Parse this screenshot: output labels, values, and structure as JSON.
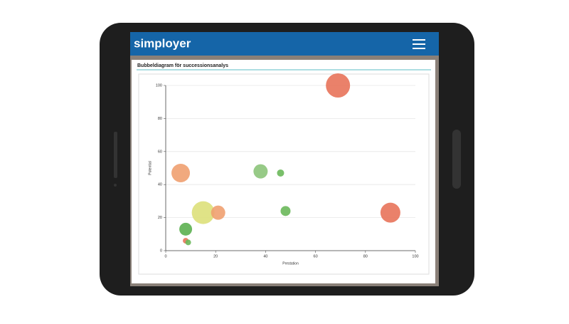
{
  "header": {
    "logo": "simployer"
  },
  "chart_data": {
    "type": "bubble",
    "title": "Bubbeldiagram för successionsanalys",
    "x_label": "Prestation",
    "y_label": "Potential",
    "xlim": [
      0,
      100
    ],
    "xticks": [
      0,
      20,
      40,
      60,
      80,
      100
    ],
    "ylim": [
      0,
      100
    ],
    "yticks": [
      0,
      20,
      40,
      60,
      80,
      100
    ],
    "grid": true,
    "series": [
      {
        "x": [
          69,
          6,
          38,
          46,
          15,
          21,
          48,
          90,
          8,
          8,
          9
        ],
        "values": [
          100,
          47,
          48,
          47,
          23,
          23,
          24,
          23,
          13,
          6,
          5
        ],
        "sizes": [
          17,
          13,
          10,
          5,
          16,
          10,
          7,
          14,
          9,
          4,
          4
        ],
        "colors": [
          "#e8735a",
          "#f0a070",
          "#8cc47a",
          "#6ab85a",
          "#dde07a",
          "#f0a070",
          "#6ab85a",
          "#e8735a",
          "#5cb050",
          "#e8735a",
          "#6ab85a"
        ]
      }
    ]
  }
}
